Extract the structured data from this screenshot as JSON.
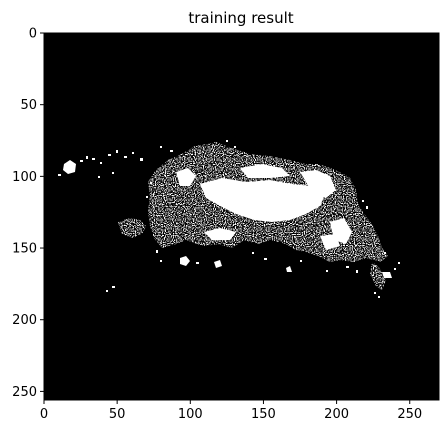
{
  "figure": {
    "title": "training result"
  },
  "image": {
    "description": "binary segmentation mask",
    "width": 270,
    "height": 256,
    "colormap": "gray",
    "background_color": "#000000",
    "foreground_color": "#ffffff"
  },
  "axes": {
    "x_ticks": [
      0,
      50,
      100,
      150,
      200,
      250
    ],
    "y_ticks": [
      0,
      50,
      100,
      150,
      200,
      250
    ],
    "xlim": [
      0,
      270
    ],
    "ylim": [
      256,
      0
    ],
    "y_inverted": true
  }
}
